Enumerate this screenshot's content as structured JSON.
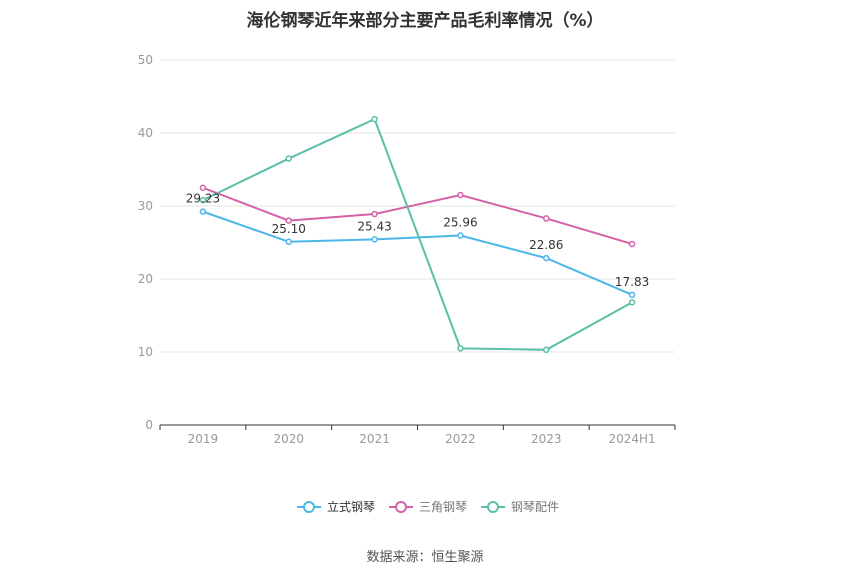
{
  "chart_data": {
    "type": "line",
    "title": "海伦钢琴近年来部分主要产品毛利率情况（%）",
    "categories": [
      "2019",
      "2020",
      "2021",
      "2022",
      "2023",
      "2024H1"
    ],
    "ylim": [
      0,
      50
    ],
    "yticks": [
      0,
      10,
      20,
      30,
      40,
      50
    ],
    "grid": true,
    "legend_position": "bottom",
    "series": [
      {
        "name": "立式钢琴",
        "color": "#4db6e8",
        "values": [
          29.23,
          25.1,
          25.43,
          25.96,
          22.86,
          17.83
        ],
        "labels": [
          "29.23",
          "25.10",
          "25.43",
          "25.96",
          "22.86",
          "17.83"
        ]
      },
      {
        "name": "三角钢琴",
        "color": "#d462a6",
        "values": [
          32.5,
          28.0,
          28.9,
          31.5,
          28.3,
          24.8
        ]
      },
      {
        "name": "钢琴配件",
        "color": "#5bbfa8",
        "values": [
          30.8,
          36.5,
          41.9,
          10.5,
          10.3,
          16.8
        ]
      }
    ]
  },
  "source_text": "数据来源：恒生聚源"
}
